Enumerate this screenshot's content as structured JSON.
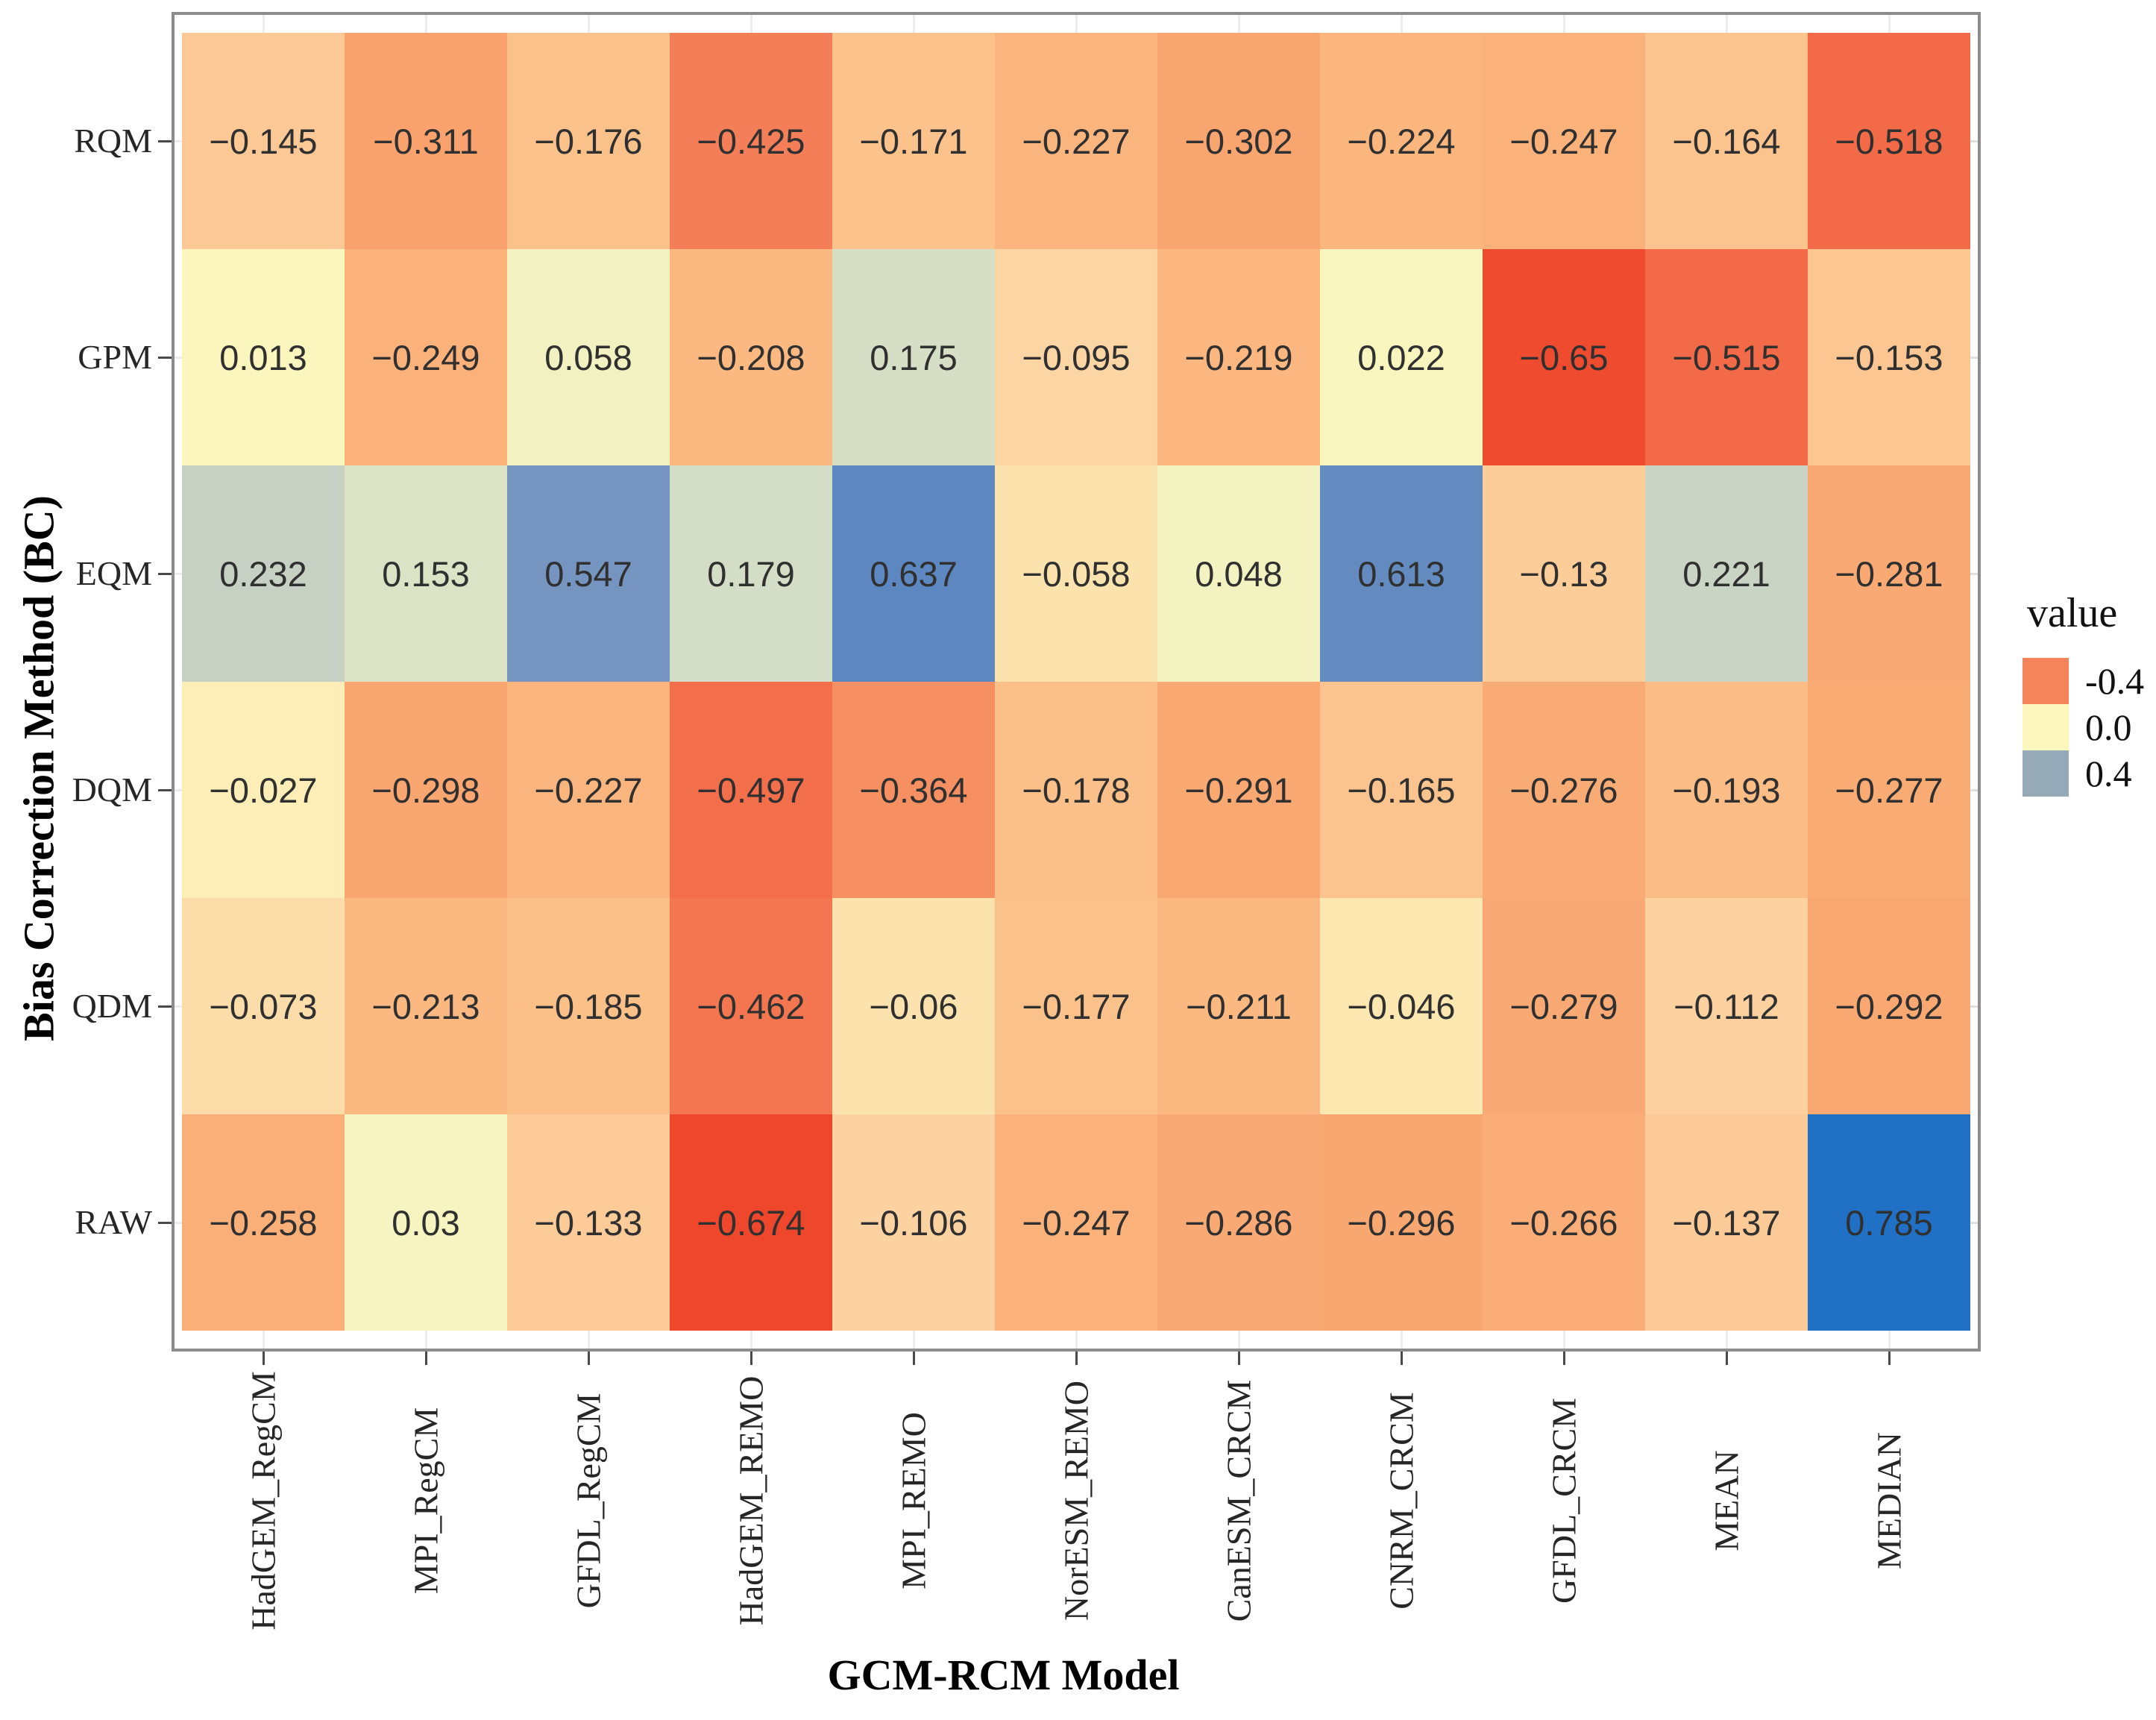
{
  "chart_data": {
    "type": "heatmap",
    "title": "",
    "xlabel": "GCM-RCM Model",
    "ylabel": "Bias Correction Method (BC)",
    "x_categories": [
      "HadGEM_RegCM",
      "MPI_RegCM",
      "GFDL_RegCM",
      "HadGEM_REMO",
      "MPI_REMO",
      "NorESM_REMO",
      "CanESM_CRCM",
      "CNRM_CRCM",
      "GFDL_CRCM",
      "MEAN",
      "MEDIAN"
    ],
    "y_categories": [
      "RQM",
      "GPM",
      "EQM",
      "DQM",
      "QDM",
      "RAW"
    ],
    "values": [
      [
        -0.145,
        -0.311,
        -0.176,
        -0.425,
        -0.171,
        -0.227,
        -0.302,
        -0.224,
        -0.247,
        -0.164,
        -0.518
      ],
      [
        0.013,
        -0.249,
        0.058,
        -0.208,
        0.175,
        -0.095,
        -0.219,
        0.022,
        -0.65,
        -0.515,
        -0.153
      ],
      [
        0.232,
        0.153,
        0.547,
        0.179,
        0.637,
        -0.058,
        0.048,
        0.613,
        -0.13,
        0.221,
        -0.281
      ],
      [
        -0.027,
        -0.298,
        -0.227,
        -0.497,
        -0.364,
        -0.178,
        -0.291,
        -0.165,
        -0.276,
        -0.193,
        -0.277
      ],
      [
        -0.073,
        -0.213,
        -0.185,
        -0.462,
        -0.06,
        -0.177,
        -0.211,
        -0.046,
        -0.279,
        -0.112,
        -0.292
      ],
      [
        -0.258,
        0.03,
        -0.133,
        -0.674,
        -0.106,
        -0.247,
        -0.286,
        -0.296,
        -0.266,
        -0.137,
        0.785
      ]
    ],
    "legend": {
      "title": "value",
      "tick_labels": [
        "-0.4",
        "0.0",
        "0.4"
      ],
      "tick_values": [
        -0.4,
        0.0,
        0.4
      ]
    },
    "color_scale": {
      "stops": [
        [
          -0.7,
          "#EE4126"
        ],
        [
          -0.4,
          "#F5845C"
        ],
        [
          -0.3,
          "#F9A670"
        ],
        [
          -0.2,
          "#FBBB83"
        ],
        [
          -0.1,
          "#FCD3A3"
        ],
        [
          0.0,
          "#FCF8BD"
        ],
        [
          0.1,
          "#E9ECC6"
        ],
        [
          0.2,
          "#CFD9C6"
        ],
        [
          0.4,
          "#96A9B6"
        ],
        [
          0.55,
          "#7495C0"
        ],
        [
          0.65,
          "#5A85C0"
        ],
        [
          0.8,
          "#1A6EC6"
        ]
      ]
    },
    "cell_text_color": "#303030",
    "axis_text_color": "#262626",
    "panel_border_color": "#8c8c8c",
    "grid_on": false,
    "legend_position": "right"
  }
}
